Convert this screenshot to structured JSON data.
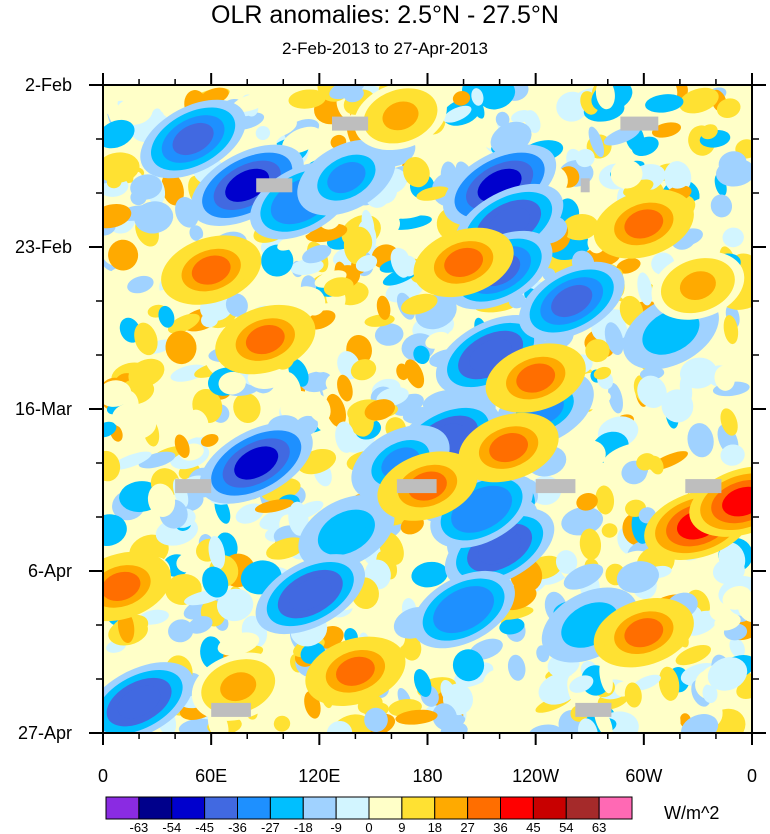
{
  "chart_data": {
    "type": "heatmap",
    "title": "OLR anomalies: 2.5°N - 27.5°N",
    "subtitle": "2-Feb-2013 to 27-Apr-2013",
    "x_tick_labels": [
      "0",
      "60E",
      "120E",
      "180",
      "120W",
      "60W",
      "0"
    ],
    "x_tick_values_deg_east": [
      0,
      60,
      120,
      180,
      240,
      300,
      360
    ],
    "xlim_deg_east": [
      0,
      360
    ],
    "y_tick_labels": [
      "2-Feb",
      "23-Feb",
      "16-Mar",
      "6-Apr",
      "27-Apr"
    ],
    "y_tick_dates": [
      "2013-02-02",
      "2013-02-23",
      "2013-03-16",
      "2013-04-06",
      "2013-04-27"
    ],
    "ylim_dates": [
      "2013-02-02",
      "2013-04-27"
    ],
    "colorbar": {
      "units": "W/m^2",
      "levels": [
        "-63",
        "-54",
        "-45",
        "-36",
        "-27",
        "-18",
        "-9",
        "0",
        "9",
        "18",
        "27",
        "36",
        "45",
        "54",
        "63"
      ],
      "colors": [
        "#8a2be2",
        "#00008b",
        "#0000cd",
        "#4169e1",
        "#1e90ff",
        "#00bfff",
        "#a0d2ff",
        "#d2f5ff",
        "#ffffc8",
        "#ffe132",
        "#ffaa00",
        "#ff6e00",
        "#ff0000",
        "#c80000",
        "#a52a2a",
        "#ff69b4"
      ]
    },
    "missing_color": "#bebebe",
    "anomaly_features": [
      {
        "lon": 50,
        "date": "2013-02-09",
        "value": -40
      },
      {
        "lon": 80,
        "date": "2013-02-15",
        "value": -50
      },
      {
        "lon": 110,
        "date": "2013-02-17",
        "value": -36
      },
      {
        "lon": 135,
        "date": "2013-02-14",
        "value": -30
      },
      {
        "lon": 220,
        "date": "2013-02-15",
        "value": -50
      },
      {
        "lon": 225,
        "date": "2013-02-20",
        "value": -45
      },
      {
        "lon": 220,
        "date": "2013-02-26",
        "value": -40
      },
      {
        "lon": 215,
        "date": "2013-03-09",
        "value": -45
      },
      {
        "lon": 260,
        "date": "2013-03-02",
        "value": -40
      },
      {
        "lon": 190,
        "date": "2013-03-20",
        "value": -45
      },
      {
        "lon": 245,
        "date": "2013-03-16",
        "value": -30
      },
      {
        "lon": 165,
        "date": "2013-03-23",
        "value": -30
      },
      {
        "lon": 85,
        "date": "2013-03-23",
        "value": -50
      },
      {
        "lon": 135,
        "date": "2013-04-01",
        "value": -27
      },
      {
        "lon": 220,
        "date": "2013-04-03",
        "value": -45
      },
      {
        "lon": 210,
        "date": "2013-03-29",
        "value": -36
      },
      {
        "lon": 200,
        "date": "2013-04-11",
        "value": -36
      },
      {
        "lon": 115,
        "date": "2013-04-09",
        "value": -45
      },
      {
        "lon": 20,
        "date": "2013-04-23",
        "value": -45
      },
      {
        "lon": 270,
        "date": "2013-04-13",
        "value": -27
      },
      {
        "lon": 315,
        "date": "2013-03-06",
        "value": -27
      },
      {
        "lon": 60,
        "date": "2013-02-26",
        "value": 27
      },
      {
        "lon": 165,
        "date": "2013-02-06",
        "value": 18
      },
      {
        "lon": 300,
        "date": "2013-02-20",
        "value": 27
      },
      {
        "lon": 240,
        "date": "2013-03-12",
        "value": 27
      },
      {
        "lon": 90,
        "date": "2013-03-07",
        "value": 27
      },
      {
        "lon": 330,
        "date": "2013-03-31",
        "value": 36
      },
      {
        "lon": 355,
        "date": "2013-03-28",
        "value": 36
      },
      {
        "lon": 225,
        "date": "2013-03-21",
        "value": 27
      },
      {
        "lon": 180,
        "date": "2013-03-26",
        "value": 27
      },
      {
        "lon": 10,
        "date": "2013-04-08",
        "value": 27
      },
      {
        "lon": 140,
        "date": "2013-04-19",
        "value": 27
      },
      {
        "lon": 300,
        "date": "2013-04-14",
        "value": 27
      },
      {
        "lon": 75,
        "date": "2013-04-21",
        "value": 18
      },
      {
        "lon": 200,
        "date": "2013-02-25",
        "value": 27
      },
      {
        "lon": 330,
        "date": "2013-02-28",
        "value": 18
      }
    ],
    "missing_cells": [
      {
        "lon_range": [
          127,
          147
        ],
        "date": "2013-02-07"
      },
      {
        "lon_range": [
          287,
          308
        ],
        "date": "2013-02-07"
      },
      {
        "lon_range": [
          85,
          105
        ],
        "date": "2013-02-15"
      },
      {
        "lon_range": [
          265,
          270
        ],
        "date": "2013-02-15"
      },
      {
        "lon_range": [
          40,
          60
        ],
        "date": "2013-03-26"
      },
      {
        "lon_range": [
          163,
          185
        ],
        "date": "2013-03-26"
      },
      {
        "lon_range": [
          240,
          262
        ],
        "date": "2013-03-26"
      },
      {
        "lon_range": [
          323,
          343
        ],
        "date": "2013-03-26"
      },
      {
        "lon_range": [
          60,
          82
        ],
        "date": "2013-04-24"
      },
      {
        "lon_range": [
          262,
          282
        ],
        "date": "2013-04-24"
      }
    ],
    "grid": false,
    "legend_position": "bottom"
  }
}
